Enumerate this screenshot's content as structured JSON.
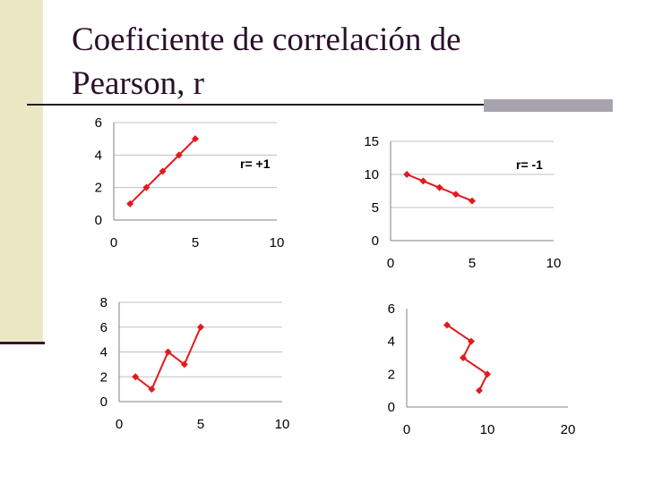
{
  "slide": {
    "title_line1": "Coeficiente de correlación de",
    "title_line2": "Pearson, r"
  },
  "colors": {
    "series": "#e3191d",
    "grid": "#c0c0c0",
    "axis": "#808080",
    "sidebar": "#eae8c4",
    "title": "#2a0f2a"
  },
  "chart_data": [
    {
      "type": "line",
      "series": [
        {
          "x": [
            1,
            2,
            3,
            4,
            5
          ],
          "y": [
            1,
            2,
            3,
            4,
            5
          ]
        }
      ],
      "xlim": [
        0,
        10
      ],
      "ylim": [
        0,
        6
      ],
      "xticks": [
        "0",
        "5",
        "10"
      ],
      "yticks": [
        "0",
        "2",
        "4",
        "6"
      ],
      "annotation": "r= +1",
      "grid": true
    },
    {
      "type": "line",
      "series": [
        {
          "x": [
            1,
            2,
            3,
            4,
            5
          ],
          "y": [
            10,
            9,
            8,
            7,
            6
          ]
        }
      ],
      "xlim": [
        0,
        10
      ],
      "ylim": [
        0,
        15
      ],
      "xticks": [
        "0",
        "5",
        "10"
      ],
      "yticks": [
        "0",
        "5",
        "10",
        "15"
      ],
      "annotation": "r= -1",
      "grid": true
    },
    {
      "type": "line",
      "series": [
        {
          "x": [
            1,
            2,
            3,
            4,
            5
          ],
          "y": [
            2,
            1,
            4,
            3,
            6
          ]
        }
      ],
      "xlim": [
        0,
        10
      ],
      "ylim": [
        0,
        8
      ],
      "xticks": [
        "0",
        "5",
        "10"
      ],
      "yticks": [
        "0",
        "2",
        "4",
        "6",
        "8"
      ],
      "annotation": "",
      "grid": true
    },
    {
      "type": "line",
      "series": [
        {
          "x": [
            9,
            10,
            7,
            8,
            5
          ],
          "y": [
            1,
            2,
            3,
            4,
            5
          ]
        }
      ],
      "xlim": [
        0,
        20
      ],
      "ylim": [
        0,
        6
      ],
      "xticks": [
        "0",
        "10",
        "20"
      ],
      "yticks": [
        "0",
        "2",
        "4",
        "6"
      ],
      "annotation": "",
      "grid": false
    }
  ]
}
